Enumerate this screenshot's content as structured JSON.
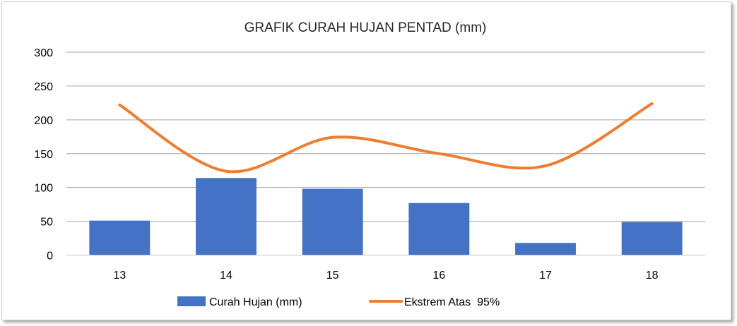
{
  "chart_data": {
    "type": "bar",
    "title": "GRAFIK CURAH HUJAN PENTAD (mm)",
    "categories": [
      "13",
      "14",
      "15",
      "16",
      "17",
      "18"
    ],
    "ylim": [
      0,
      300
    ],
    "yticks": [
      "0",
      "50",
      "100",
      "150",
      "200",
      "250",
      "300"
    ],
    "grid": true,
    "legend_position": "bottom",
    "series": [
      {
        "name": "Curah Hujan (mm)",
        "type": "bar",
        "color": "#4472C4",
        "values": [
          51,
          114,
          98,
          77,
          18,
          49
        ]
      },
      {
        "name": "Ekstrem Atas  95%",
        "type": "line",
        "smooth": true,
        "color": "#ED7D31",
        "values": [
          222,
          124,
          174,
          150,
          132,
          224
        ]
      }
    ]
  }
}
